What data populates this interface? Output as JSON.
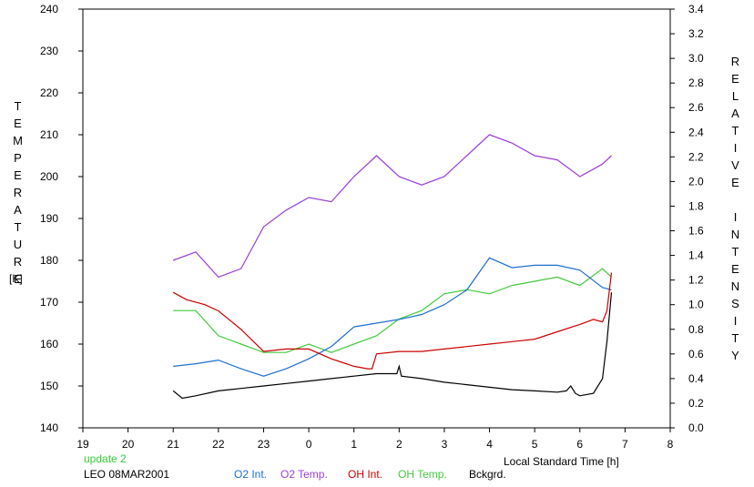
{
  "chart_data": {
    "type": "line",
    "y_left_label_letters": [
      "T",
      "E",
      "M",
      "P",
      "E",
      "R",
      "A",
      "T",
      "U",
      "R",
      "E"
    ],
    "y_left_unit": "[K]",
    "y_right_label_word1": [
      "R",
      "E",
      "L",
      "A",
      "T",
      "I",
      "V",
      "E"
    ],
    "y_right_label_word2": [
      "I",
      "N",
      "T",
      "E",
      "N",
      "S",
      "I",
      "T",
      "Y"
    ],
    "xlabel": "Local Standard Time [h]",
    "x_ticks": [
      "19",
      "20",
      "21",
      "22",
      "23",
      "0",
      "1",
      "2",
      "3",
      "4",
      "5",
      "6",
      "7",
      "8"
    ],
    "y_left_ticks": [
      "140",
      "150",
      "160",
      "170",
      "180",
      "190",
      "200",
      "210",
      "220",
      "230",
      "240"
    ],
    "y_right_ticks": [
      "0.0",
      "0.2",
      "0.4",
      "0.6",
      "0.8",
      "1.0",
      "1.2",
      "1.4",
      "1.6",
      "1.8",
      "2.0",
      "2.2",
      "2.4",
      "2.6",
      "2.8",
      "3.0",
      "3.2",
      "3.4"
    ],
    "ylim_left": [
      140,
      240
    ],
    "ylim_right": [
      0.0,
      3.4
    ],
    "xlim": [
      19,
      32
    ],
    "grid": false,
    "note": "update 2",
    "station_label": "LEO 08MAR2001",
    "series": [
      {
        "name": "O2 Int.",
        "color": "#1f6fd0",
        "axis": "right",
        "x": [
          21.0,
          21.5,
          22.0,
          22.5,
          23.0,
          23.5,
          24.0,
          24.5,
          25.0,
          25.5,
          26.0,
          26.5,
          27.0,
          27.5,
          28.0,
          28.5,
          29.0,
          29.5,
          30.0,
          30.5,
          30.7
        ],
        "y": [
          0.5,
          0.52,
          0.55,
          0.48,
          0.42,
          0.48,
          0.56,
          0.66,
          0.82,
          0.85,
          0.88,
          0.92,
          1.0,
          1.12,
          1.38,
          1.3,
          1.32,
          1.32,
          1.28,
          1.14,
          1.12
        ]
      },
      {
        "name": "O2 Temp.",
        "color": "#9a40d8",
        "axis": "left",
        "x": [
          21.0,
          21.5,
          22.0,
          22.5,
          23.0,
          23.5,
          24.0,
          24.5,
          25.0,
          25.5,
          26.0,
          26.5,
          27.0,
          27.5,
          28.0,
          28.5,
          29.0,
          29.5,
          30.0,
          30.5,
          30.7
        ],
        "y": [
          180,
          182,
          176,
          178,
          188,
          192,
          195,
          194,
          200,
          205,
          200,
          198,
          200,
          205,
          210,
          208,
          205,
          204,
          200,
          203,
          205
        ]
      },
      {
        "name": "OH Int.",
        "color": "#cc0000",
        "axis": "right",
        "x": [
          21.0,
          21.3,
          21.7,
          22.0,
          22.5,
          23.0,
          23.5,
          24.0,
          24.5,
          25.0,
          25.3,
          25.4,
          25.5,
          26.0,
          26.5,
          27.0,
          27.5,
          28.0,
          28.5,
          29.0,
          29.5,
          30.0,
          30.3,
          30.5,
          30.6,
          30.7
        ],
        "y": [
          1.1,
          1.04,
          1.0,
          0.95,
          0.8,
          0.62,
          0.64,
          0.64,
          0.56,
          0.5,
          0.48,
          0.48,
          0.6,
          0.62,
          0.62,
          0.64,
          0.66,
          0.68,
          0.7,
          0.72,
          0.78,
          0.84,
          0.88,
          0.86,
          0.95,
          1.26
        ]
      },
      {
        "name": "OH Temp.",
        "color": "#44c840",
        "axis": "left",
        "x": [
          21.0,
          21.5,
          22.0,
          22.5,
          23.0,
          23.5,
          24.0,
          24.5,
          25.0,
          25.5,
          26.0,
          26.5,
          27.0,
          27.5,
          28.0,
          28.5,
          29.0,
          29.5,
          30.0,
          30.5,
          30.7
        ],
        "y": [
          168,
          168,
          162,
          160,
          158,
          158,
          160,
          158,
          160,
          162,
          166,
          168,
          172,
          173,
          172,
          174,
          175,
          176,
          174,
          178,
          176
        ]
      },
      {
        "name": "Bckgrd.",
        "color": "#000000",
        "axis": "right",
        "x": [
          21.0,
          21.2,
          21.5,
          22.0,
          22.5,
          23.0,
          23.5,
          24.0,
          24.5,
          25.0,
          25.5,
          25.95,
          26.0,
          26.05,
          26.5,
          27.0,
          27.5,
          28.0,
          28.5,
          29.0,
          29.5,
          29.7,
          29.8,
          29.9,
          30.0,
          30.3,
          30.5,
          30.6,
          30.7
        ],
        "y": [
          0.3,
          0.24,
          0.26,
          0.3,
          0.32,
          0.34,
          0.36,
          0.38,
          0.4,
          0.42,
          0.44,
          0.44,
          0.5,
          0.42,
          0.4,
          0.37,
          0.35,
          0.33,
          0.31,
          0.3,
          0.29,
          0.3,
          0.34,
          0.28,
          0.26,
          0.28,
          0.4,
          0.7,
          1.1
        ]
      }
    ]
  }
}
